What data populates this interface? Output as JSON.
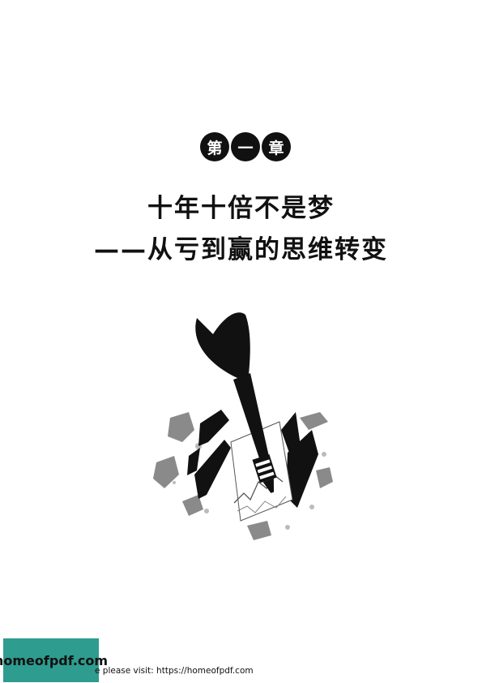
{
  "chapter": {
    "chars": [
      "第",
      "一",
      "章"
    ]
  },
  "title": {
    "line1": "十年十倍不是梦",
    "line2": "——从亏到赢的思维转变"
  },
  "illustration": {
    "icon": "dart-hitting-stock-chart-icon"
  },
  "watermark": {
    "logo_text": "homeofpdf.com",
    "text": "e please visit: https://homeofpdf.com"
  }
}
